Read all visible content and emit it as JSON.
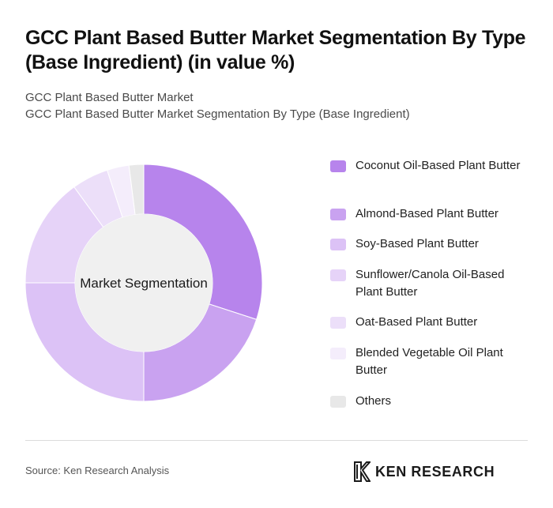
{
  "header": {
    "title": "GCC Plant Based Butter Market Segmentation By Type (Base Ingredient) (in value %)",
    "subtitle_line1": "GCC Plant Based Butter Market",
    "subtitle_line2": "GCC Plant Based Butter Market Segmentation By Type (Base Ingredient)"
  },
  "chart_data": {
    "type": "pie",
    "variant": "donut",
    "center_label": "Market Segmentation",
    "unit": "%",
    "legend_placement": "right",
    "categories": [
      "Coconut Oil-Based Plant Butter",
      "Almond-Based Plant Butter",
      "Soy-Based Plant Butter",
      "Sunflower/Canola Oil-Based Plant Butter",
      "Oat-Based Plant Butter",
      "Blended Vegetable Oil Plant Butter",
      "Others"
    ],
    "values": [
      30,
      20,
      25,
      15,
      5,
      3,
      2
    ],
    "colors": [
      "#b784ec",
      "#c9a2f0",
      "#dcc2f6",
      "#e6d3f8",
      "#ecdff9",
      "#f4edfb",
      "#e8e8e8"
    ]
  },
  "footer": {
    "source": "Source: Ken Research Analysis",
    "brand": "KEN RESEARCH"
  }
}
